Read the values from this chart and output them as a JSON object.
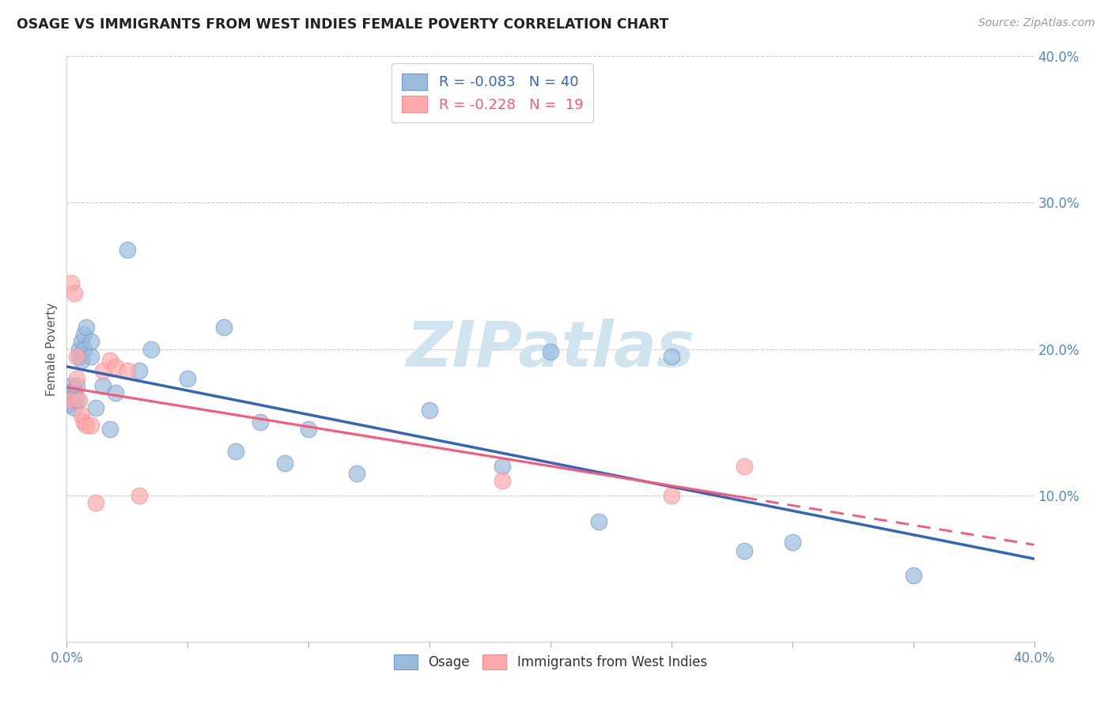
{
  "title": "OSAGE VS IMMIGRANTS FROM WEST INDIES FEMALE POVERTY CORRELATION CHART",
  "source": "Source: ZipAtlas.com",
  "xlabel": "",
  "ylabel": "Female Poverty",
  "xmin": 0.0,
  "xmax": 0.4,
  "ymin": 0.0,
  "ymax": 0.4,
  "yticks": [
    0.1,
    0.2,
    0.3,
    0.4
  ],
  "ytick_labels": [
    "10.0%",
    "20.0%",
    "30.0%",
    "40.0%"
  ],
  "xticks": [
    0.0,
    0.05,
    0.1,
    0.15,
    0.2,
    0.25,
    0.3,
    0.35,
    0.4
  ],
  "legend_osage_R": "-0.083",
  "legend_osage_N": "40",
  "legend_wi_R": "-0.228",
  "legend_wi_N": "19",
  "legend_label1": "Osage",
  "legend_label2": "Immigrants from West Indies",
  "blue_color": "#99BBDD",
  "pink_color": "#FFAAAA",
  "trendline_blue": "#3366BB",
  "trendline_pink": "#FF5577",
  "watermark_color": "#D0E4F0",
  "osage_x": [
    0.001,
    0.001,
    0.002,
    0.002,
    0.003,
    0.003,
    0.003,
    0.004,
    0.004,
    0.005,
    0.005,
    0.006,
    0.006,
    0.007,
    0.007,
    0.008,
    0.01,
    0.01,
    0.012,
    0.015,
    0.018,
    0.02,
    0.025,
    0.03,
    0.035,
    0.05,
    0.065,
    0.07,
    0.08,
    0.09,
    0.1,
    0.12,
    0.15,
    0.18,
    0.2,
    0.22,
    0.25,
    0.28,
    0.3,
    0.35
  ],
  "osage_y": [
    0.17,
    0.162,
    0.165,
    0.175,
    0.16,
    0.172,
    0.168,
    0.175,
    0.165,
    0.2,
    0.195,
    0.205,
    0.192,
    0.21,
    0.2,
    0.215,
    0.205,
    0.195,
    0.16,
    0.175,
    0.145,
    0.17,
    0.268,
    0.185,
    0.2,
    0.18,
    0.215,
    0.13,
    0.15,
    0.122,
    0.145,
    0.115,
    0.158,
    0.12,
    0.198,
    0.082,
    0.195,
    0.062,
    0.068,
    0.045
  ],
  "wi_x": [
    0.001,
    0.002,
    0.003,
    0.004,
    0.004,
    0.005,
    0.006,
    0.007,
    0.008,
    0.01,
    0.012,
    0.015,
    0.018,
    0.02,
    0.025,
    0.03,
    0.18,
    0.25,
    0.28
  ],
  "wi_y": [
    0.165,
    0.245,
    0.238,
    0.195,
    0.18,
    0.165,
    0.155,
    0.15,
    0.148,
    0.148,
    0.095,
    0.185,
    0.192,
    0.188,
    0.185,
    0.1,
    0.11,
    0.1,
    0.12
  ]
}
